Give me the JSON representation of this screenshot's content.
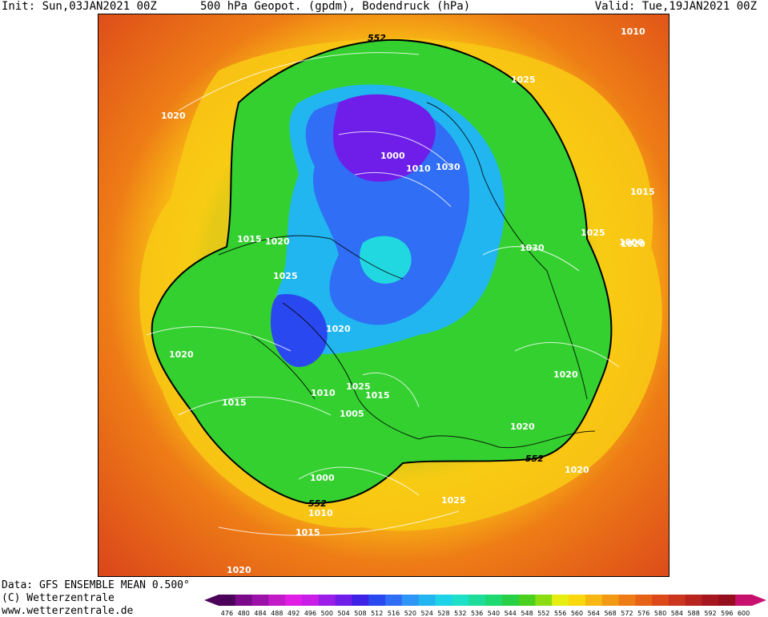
{
  "header": {
    "init": "Init: Sun,03JAN2021 00Z",
    "title": "500 hPa Geopot. (gpdm), Bodendruck (hPa)",
    "valid": "Valid: Tue,19JAN2021 00Z"
  },
  "footer": {
    "data_source": "Data: GFS ENSEMBLE MEAN 0.500°",
    "copyright": "(C) Wetterzentrale",
    "url": "www.wetterzentrale.de"
  },
  "map": {
    "projection": "polar stereographic, north pole",
    "contour_label_552": "552",
    "pressure_labels": [
      "1010",
      "1020",
      "1015",
      "1020",
      "1015",
      "1020",
      "1025",
      "1020",
      "1010",
      "1025",
      "1015",
      "1005",
      "1000",
      "1010",
      "1015",
      "1020",
      "1000",
      "1010",
      "1030",
      "1025",
      "1030",
      "1020",
      "1025",
      "1015",
      "1020",
      "1020",
      "1025",
      "1020",
      "1000",
      "1010",
      "1015"
    ]
  },
  "colorscale": {
    "labels": [
      "476",
      "480",
      "484",
      "488",
      "492",
      "496",
      "500",
      "504",
      "508",
      "512",
      "516",
      "520",
      "524",
      "528",
      "532",
      "536",
      "540",
      "544",
      "548",
      "552",
      "556",
      "560",
      "564",
      "568",
      "572",
      "576",
      "580",
      "584",
      "588",
      "592",
      "596",
      "600"
    ],
    "colors": [
      "#4b0059",
      "#7a0a8a",
      "#9c12a8",
      "#c21cc8",
      "#e01ee6",
      "#c81ee8",
      "#9a1ee8",
      "#6e1ee8",
      "#3e22e6",
      "#2a48f0",
      "#2f6ef5",
      "#2f96f6",
      "#22b6f0",
      "#1ed2e8",
      "#1ee0c8",
      "#1edc9a",
      "#1ed870",
      "#28d046",
      "#4ad01e",
      "#8cdc14",
      "#e6ee10",
      "#fad80e",
      "#f8b814",
      "#f39a14",
      "#ee7c16",
      "#e66216",
      "#dc4a1a",
      "#cc361e",
      "#b8241e",
      "#a6161e",
      "#940e1e",
      "#c8106e"
    ]
  }
}
